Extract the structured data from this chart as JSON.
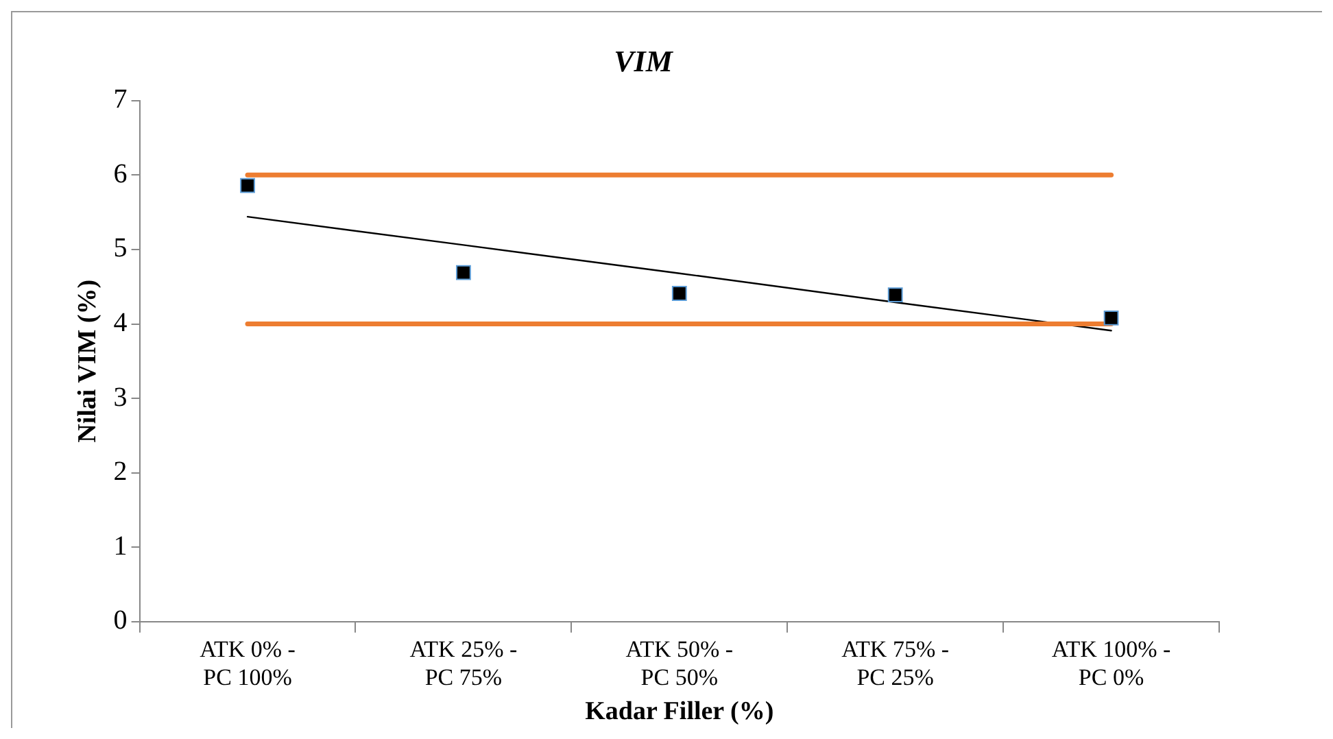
{
  "chart_data": {
    "type": "scatter",
    "title": "VIM",
    "xlabel": "Kadar Filler (%)",
    "ylabel": "Nilai VIM (%)",
    "categories": [
      "ATK 0% - PC 100%",
      "ATK 25% - PC 75%",
      "ATK 50% - PC 50%",
      "ATK 75% - PC 25%",
      "ATK 100% - PC 0%"
    ],
    "series": [
      {
        "type": "line",
        "color": "#ed7d31",
        "marker": "none",
        "values": [
          6,
          6,
          6,
          6,
          6
        ]
      },
      {
        "type": "line",
        "color": "#ed7d31",
        "marker": "none",
        "values": [
          4,
          4,
          4,
          4,
          4
        ]
      },
      {
        "type": "line",
        "color": "#000000",
        "marker": "none",
        "values": [
          5.44,
          5.06,
          4.68,
          4.29,
          3.91
        ]
      },
      {
        "color": "#000000",
        "marker": "square",
        "values": [
          5.86,
          4.69,
          4.41,
          4.39,
          4.08
        ]
      }
    ],
    "ylim": [
      0,
      7
    ],
    "yticks": [
      0,
      1,
      2,
      3,
      4,
      5,
      6,
      7
    ],
    "grid": false,
    "legend": false
  }
}
